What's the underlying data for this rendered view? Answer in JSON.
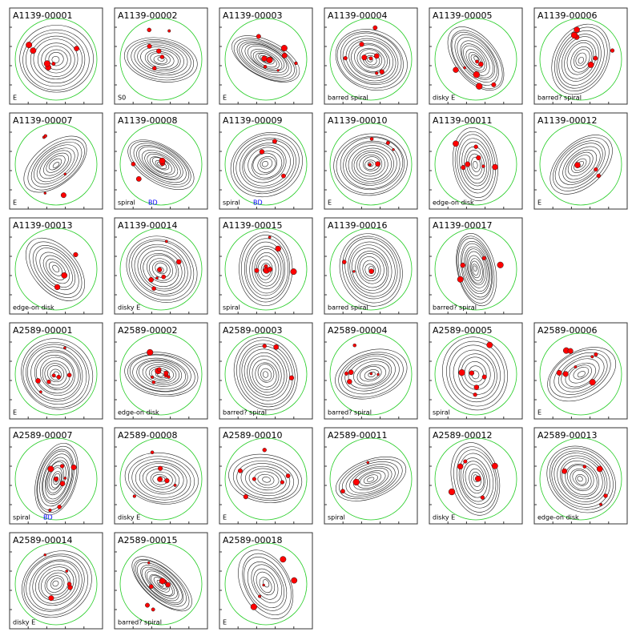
{
  "rows": [
    [
      {
        "id": "A1139-00001",
        "label": "E"
      },
      {
        "id": "A1139-00002",
        "label": "S0"
      },
      {
        "id": "A1139-00003",
        "label": "E"
      },
      {
        "id": "A1139-00004",
        "label": "barred spiral"
      },
      {
        "id": "A1139-00005",
        "label": "disky E"
      },
      {
        "id": "A1139-00006",
        "label": "barred? spiral"
      }
    ],
    [
      {
        "id": "A1139-00007",
        "label": "E"
      },
      {
        "id": "A1139-00008",
        "label": "spiral",
        "tag": "BD"
      },
      {
        "id": "A1139-00009",
        "label": "spiral",
        "tag": "BD"
      },
      {
        "id": "A1139-00010",
        "label": "E"
      },
      {
        "id": "A1139-00011",
        "label": "edge-on disk"
      },
      {
        "id": "A1139-00012",
        "label": "E"
      }
    ],
    [
      {
        "id": "A1139-00013",
        "label": "edge-on disk"
      },
      {
        "id": "A1139-00014",
        "label": "disky E"
      },
      {
        "id": "A1139-00015",
        "label": "spiral"
      },
      {
        "id": "A1139-00016",
        "label": "barred spiral"
      },
      {
        "id": "A1139-00017",
        "label": "barred? spiral"
      }
    ],
    [
      {
        "id": "A2589-00001",
        "label": "E"
      },
      {
        "id": "A2589-00002",
        "label": "edge-on disk"
      },
      {
        "id": "A2589-00003",
        "label": "barred? spiral"
      },
      {
        "id": "A2589-00004",
        "label": "barred? spiral"
      },
      {
        "id": "A2589-00005",
        "label": "spiral"
      },
      {
        "id": "A2589-00006",
        "label": "E"
      }
    ],
    [
      {
        "id": "A2589-00007",
        "label": "spiral",
        "tag": "BD"
      },
      {
        "id": "A2589-00008",
        "label": "disky E"
      },
      {
        "id": "A2589-00010",
        "label": "E"
      },
      {
        "id": "A2589-00011",
        "label": "spiral"
      },
      {
        "id": "A2589-00012",
        "label": "disky E"
      },
      {
        "id": "A2589-00013",
        "label": "edge-on disk"
      }
    ],
    [
      {
        "id": "A2589-00014",
        "label": "disky E"
      },
      {
        "id": "A2589-00015",
        "label": "barred? spiral"
      },
      {
        "id": "A2589-00018",
        "label": "E"
      }
    ]
  ]
}
